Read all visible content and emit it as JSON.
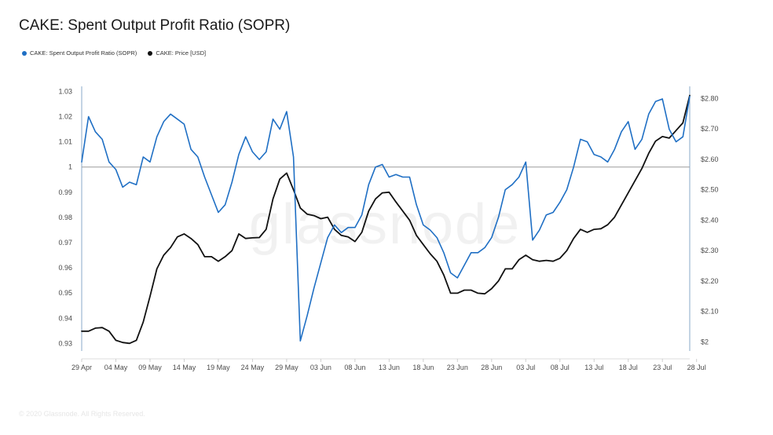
{
  "title": "CAKE: Spent Output Profit Ratio (SOPR)",
  "footer": "© 2020 Glassnode. All Rights Reserved.",
  "watermark": "glassnode",
  "colors": {
    "sopr": "#1f6fc4",
    "price": "#111111",
    "baseline": "#9e9e9e",
    "axis": "#8aa9c9"
  },
  "chart_data": {
    "type": "line",
    "x_tick_labels": [
      "29 Apr",
      "04 May",
      "09 May",
      "14 May",
      "19 May",
      "24 May",
      "29 May",
      "03 Jun",
      "08 Jun",
      "13 Jun",
      "18 Jun",
      "23 Jun",
      "28 Jun",
      "03 Jul",
      "08 Jul",
      "13 Jul",
      "18 Jul",
      "23 Jul",
      "28 Jul"
    ],
    "left_axis": {
      "ticks": [
        0.93,
        0.94,
        0.95,
        0.96,
        0.97,
        0.98,
        0.99,
        1,
        1.01,
        1.02,
        1.03
      ],
      "tick_labels": [
        "0.93",
        "0.94",
        "0.95",
        "0.96",
        "0.97",
        "0.98",
        "0.99",
        "1",
        "1.01",
        "1.02",
        "1.03"
      ],
      "range": [
        0.927,
        1.032
      ]
    },
    "right_axis": {
      "ticks": [
        2.0,
        2.1,
        2.2,
        2.3,
        2.4,
        2.5,
        2.6,
        2.7,
        2.8
      ],
      "tick_labels": [
        "$2",
        "$2.10",
        "$2.20",
        "$2.30",
        "$2.40",
        "$2.50",
        "$2.60",
        "$2.70",
        "$2.80"
      ],
      "range": [
        1.97,
        2.84
      ]
    },
    "reference_line": 1,
    "series": [
      {
        "name": "CAKE: Spent Output Profit Ratio (SOPR)",
        "axis": "left",
        "x": [
          0,
          1,
          2,
          3,
          4,
          5,
          6,
          7,
          8,
          9,
          10,
          11,
          12,
          13,
          14,
          15,
          16,
          17,
          18,
          19,
          20,
          21,
          22,
          23,
          24,
          25,
          26,
          27,
          28,
          29,
          30,
          31,
          32,
          33,
          34,
          35,
          36,
          37,
          38,
          39,
          40,
          41,
          42,
          43,
          44,
          45,
          46,
          47,
          48,
          49,
          50,
          51,
          52,
          53,
          54,
          55,
          56,
          57,
          58,
          59,
          60,
          61,
          62,
          63,
          64,
          65,
          66,
          67,
          68,
          69,
          70,
          71,
          72,
          73,
          74,
          75,
          76,
          77,
          78,
          79,
          80,
          81,
          82,
          83,
          84,
          85,
          86,
          87,
          88,
          89
        ],
        "values": [
          1.002,
          1.02,
          1.014,
          1.011,
          1.002,
          0.999,
          0.992,
          0.994,
          0.993,
          1.004,
          1.002,
          1.012,
          1.018,
          1.021,
          1.019,
          1.017,
          1.007,
          1.004,
          0.996,
          0.989,
          0.982,
          0.985,
          0.994,
          1.005,
          1.012,
          1.006,
          1.003,
          1.006,
          1.019,
          1.015,
          1.022,
          1.004,
          0.931,
          0.941,
          0.952,
          0.962,
          0.972,
          0.977,
          0.974,
          0.976,
          0.976,
          0.981,
          0.993,
          1.0,
          1.001,
          0.996,
          0.997,
          0.996,
          0.996,
          0.985,
          0.977,
          0.975,
          0.972,
          0.966,
          0.958,
          0.956,
          0.961,
          0.966,
          0.966,
          0.968,
          0.972,
          0.98,
          0.991,
          0.993,
          0.996,
          1.002,
          0.971,
          0.975,
          0.981,
          0.982,
          0.986,
          0.991,
          1.0,
          1.011,
          1.01,
          1.005,
          1.004,
          1.002,
          1.007,
          1.014,
          1.018,
          1.007,
          1.011,
          1.021,
          1.026,
          1.027,
          1.015,
          1.01,
          1.012,
          1.028
        ]
      },
      {
        "name": "CAKE: Price [USD]",
        "axis": "right",
        "x": [
          0,
          1,
          2,
          3,
          4,
          5,
          6,
          7,
          8,
          9,
          10,
          11,
          12,
          13,
          14,
          15,
          16,
          17,
          18,
          19,
          20,
          21,
          22,
          23,
          24,
          25,
          26,
          27,
          28,
          29,
          30,
          31,
          32,
          33,
          34,
          35,
          36,
          37,
          38,
          39,
          40,
          41,
          42,
          43,
          44,
          45,
          46,
          47,
          48,
          49,
          50,
          51,
          52,
          53,
          54,
          55,
          56,
          57,
          58,
          59,
          60,
          61,
          62,
          63,
          64,
          65,
          66,
          67,
          68,
          69,
          70,
          71,
          72,
          73,
          74,
          75,
          76,
          77,
          78,
          79,
          80,
          81,
          82,
          83,
          84,
          85,
          86,
          87,
          88,
          89
        ],
        "values": [
          2.035,
          2.035,
          2.045,
          2.047,
          2.035,
          2.005,
          1.998,
          1.995,
          2.005,
          2.065,
          2.15,
          2.24,
          2.285,
          2.31,
          2.345,
          2.355,
          2.34,
          2.32,
          2.28,
          2.28,
          2.265,
          2.28,
          2.3,
          2.355,
          2.34,
          2.342,
          2.343,
          2.37,
          2.47,
          2.535,
          2.555,
          2.5,
          2.44,
          2.42,
          2.415,
          2.405,
          2.41,
          2.37,
          2.35,
          2.345,
          2.33,
          2.36,
          2.43,
          2.47,
          2.49,
          2.492,
          2.46,
          2.43,
          2.4,
          2.35,
          2.32,
          2.29,
          2.265,
          2.22,
          2.16,
          2.16,
          2.17,
          2.17,
          2.16,
          2.158,
          2.175,
          2.2,
          2.24,
          2.24,
          2.27,
          2.285,
          2.27,
          2.265,
          2.268,
          2.265,
          2.275,
          2.3,
          2.34,
          2.37,
          2.36,
          2.37,
          2.372,
          2.385,
          2.41,
          2.45,
          2.49,
          2.53,
          2.57,
          2.62,
          2.66,
          2.675,
          2.67,
          2.695,
          2.72,
          2.81
        ]
      }
    ]
  },
  "legend": [
    {
      "label": "CAKE: Spent Output Profit Ratio (SOPR)",
      "color": "#1f6fc4"
    },
    {
      "label": "CAKE: Price [USD]",
      "color": "#111111"
    }
  ]
}
